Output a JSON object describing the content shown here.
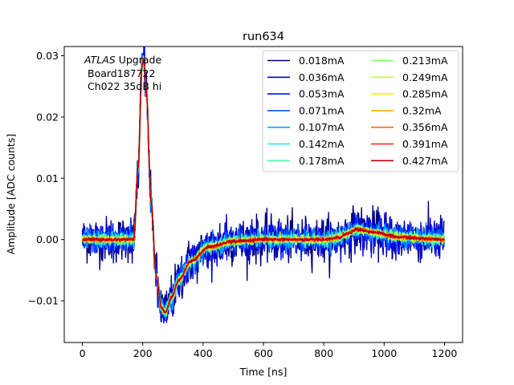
{
  "chart_data": {
    "type": "line",
    "title": "run634",
    "xlabel": "Time [ns]",
    "ylabel": "Amplitude [ADC counts]",
    "xlim": [
      -60,
      1260
    ],
    "ylim": [
      -0.0168,
      0.0315
    ],
    "xticks": [
      0,
      200,
      400,
      600,
      800,
      1000,
      1200
    ],
    "xtick_labels": [
      "0",
      "200",
      "400",
      "600",
      "800",
      "1000",
      "1200"
    ],
    "yticks": [
      -0.01,
      0.0,
      0.01,
      0.02,
      0.03
    ],
    "ytick_labels": [
      "−0.01",
      "0.00",
      "0.01",
      "0.02",
      "0.03"
    ],
    "grid": false,
    "legend_position": "top-right",
    "legend_columns": 2,
    "annotation": {
      "italic_part": "ATLAS",
      "line1_rest": " Upgrade",
      "line2": "Board187722",
      "line3": "Ch022 35dB hi"
    },
    "pulse_shape_points": [
      [
        0,
        0.0
      ],
      [
        170,
        0.0
      ],
      [
        185,
        0.012
      ],
      [
        198,
        0.0285
      ],
      [
        203,
        0.0295
      ],
      [
        212,
        0.024
      ],
      [
        228,
        0.006
      ],
      [
        245,
        -0.006
      ],
      [
        262,
        -0.0112
      ],
      [
        275,
        -0.0118
      ],
      [
        295,
        -0.0095
      ],
      [
        320,
        -0.0066
      ],
      [
        360,
        -0.0035
      ],
      [
        420,
        -0.0012
      ],
      [
        500,
        -0.0003
      ],
      [
        600,
        0.0
      ],
      [
        800,
        0.0
      ],
      [
        850,
        0.0003
      ],
      [
        880,
        0.001
      ],
      [
        910,
        0.0017
      ],
      [
        960,
        0.0012
      ],
      [
        1050,
        0.0004
      ],
      [
        1150,
        0.0001
      ],
      [
        1200,
        0.0
      ]
    ],
    "series": [
      {
        "name": "0.018mA",
        "color": "#00007f",
        "noise": 0.0022
      },
      {
        "name": "0.036mA",
        "color": "#0000d6",
        "noise": 0.0017
      },
      {
        "name": "0.053mA",
        "color": "#0010ff",
        "noise": 0.0013
      },
      {
        "name": "0.071mA",
        "color": "#0058ff",
        "noise": 0.0011
      },
      {
        "name": "0.107mA",
        "color": "#00a4ff",
        "noise": 0.0008
      },
      {
        "name": "0.142mA",
        "color": "#1ce2ef",
        "noise": 0.0006
      },
      {
        "name": "0.178mA",
        "color": "#4cffaa",
        "noise": 0.0005
      },
      {
        "name": "0.213mA",
        "color": "#86ff72",
        "noise": 0.0004
      },
      {
        "name": "0.249mA",
        "color": "#c0ff36",
        "noise": 0.00035
      },
      {
        "name": "0.285mA",
        "color": "#fbee00",
        "noise": 0.0003
      },
      {
        "name": "0.32mA",
        "color": "#ffab00",
        "noise": 0.00025
      },
      {
        "name": "0.356mA",
        "color": "#ff6800",
        "noise": 0.0002
      },
      {
        "name": "0.391mA",
        "color": "#ff1e00",
        "noise": 0.00018
      },
      {
        "name": "0.427mA",
        "color": "#b20000",
        "noise": 0.00015
      }
    ]
  }
}
